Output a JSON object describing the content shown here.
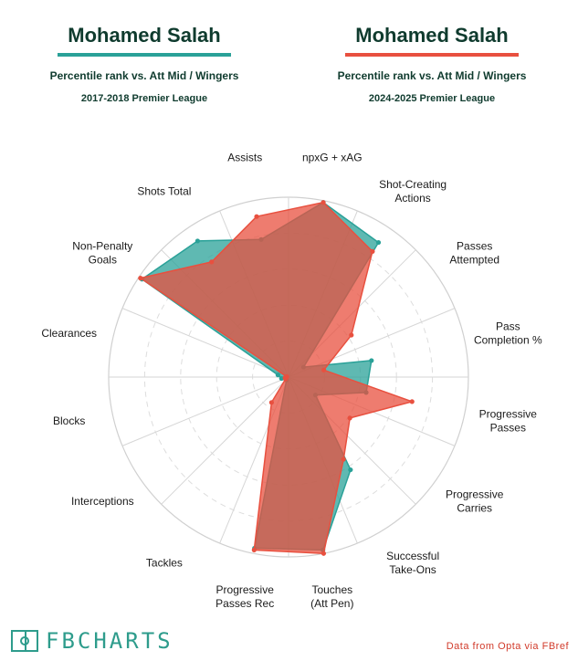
{
  "header": {
    "left": {
      "player": "Mohamed Salah",
      "subtitle": "Percentile rank vs. Att Mid / Wingers",
      "season": "2017-2018 Premier League",
      "accent": "#2aa198"
    },
    "right": {
      "player": "Mohamed Salah",
      "subtitle": "Percentile rank vs. Att Mid / Wingers",
      "season": "2024-2025 Premier League",
      "accent": "#e8503f"
    }
  },
  "chart_data": {
    "type": "radar",
    "rlim": [
      0,
      100
    ],
    "grid": true,
    "categories": [
      "npxG + xAG",
      "Shot-Creating Actions",
      "Passes Attempted",
      "Pass Completion %",
      "Progressive Passes",
      "Progressive Carries",
      "Successful Take-Ons",
      "Touches (Att Pen)",
      "Progressive Passes Rec",
      "Tackles",
      "Interceptions",
      "Blocks",
      "Clearances",
      "Non-Penalty Goals",
      "Shots Total",
      "Assists"
    ],
    "series": [
      {
        "name": "2017-2018 Premier League",
        "color": "#2aa198",
        "values": [
          99,
          90,
          10,
          47,
          44,
          18,
          62,
          98,
          97,
          2,
          2,
          4,
          6,
          98,
          91,
          78
        ]
      },
      {
        "name": "2024-2025 Premier League",
        "color": "#e8503f",
        "values": [
          99,
          84,
          42,
          20,
          70,
          41,
          55,
          100,
          98,
          17,
          2,
          2,
          1,
          99,
          77,
          91
        ]
      }
    ]
  },
  "footer": {
    "logo": "FBCHARTS",
    "credit": "Data from Opta via FBref"
  }
}
